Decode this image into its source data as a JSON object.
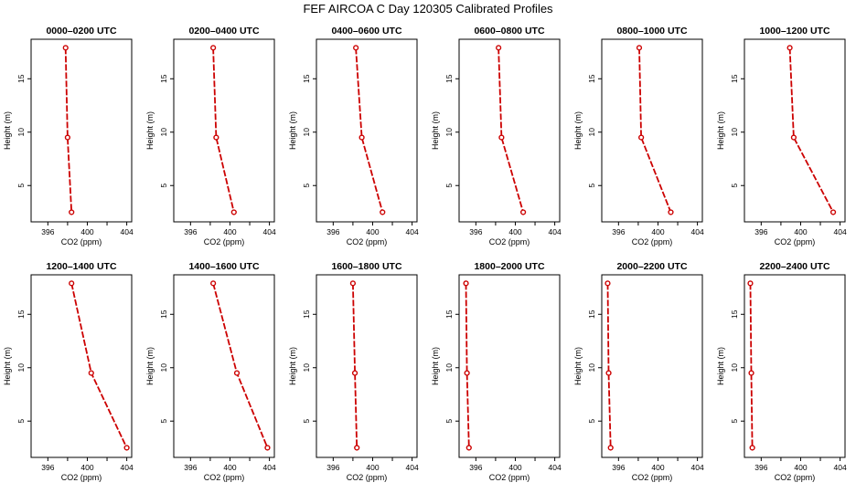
{
  "colors": {
    "line": "#cc0000",
    "frame": "#000000",
    "background": "#ffffff"
  },
  "chart_data": {
    "type": "line",
    "title": "FEF AIRCOA C  Day 120305  Calibrated Profiles",
    "xlabel": "CO2 (ppm)",
    "ylabel": "Height (m)",
    "xlim": [
      394.3,
      404.5
    ],
    "ylim": [
      1.6,
      18.7
    ],
    "xticks": [
      396,
      398,
      400,
      402,
      404
    ],
    "xtick_labels": [
      "396",
      "400",
      "404"
    ],
    "yticks": [
      5,
      10,
      15
    ],
    "yticks_labels": [
      "5",
      "10",
      "15"
    ],
    "grid": false,
    "legend": "none",
    "heights": [
      17.9,
      9.5,
      2.5
    ],
    "panels": [
      {
        "title": "0000–0200 UTC",
        "values": [
          397.8,
          398.0,
          398.4
        ]
      },
      {
        "title": "0200–0400 UTC",
        "values": [
          398.3,
          398.6,
          400.4
        ]
      },
      {
        "title": "0400–0600 UTC",
        "values": [
          398.3,
          398.9,
          401.0
        ]
      },
      {
        "title": "0600–0800 UTC",
        "values": [
          398.3,
          398.6,
          400.8
        ]
      },
      {
        "title": "0800–1000 UTC",
        "values": [
          398.1,
          398.3,
          401.3
        ]
      },
      {
        "title": "1000–1200 UTC",
        "values": [
          398.9,
          399.3,
          403.3
        ]
      },
      {
        "title": "1200–1400 UTC",
        "values": [
          398.4,
          400.4,
          404.0
        ]
      },
      {
        "title": "1400–1600 UTC",
        "values": [
          398.3,
          400.7,
          403.8
        ]
      },
      {
        "title": "1600–1800 UTC",
        "values": [
          398.0,
          398.2,
          398.4
        ]
      },
      {
        "title": "1800–2000 UTC",
        "values": [
          395.0,
          395.1,
          395.3
        ]
      },
      {
        "title": "2000–2200 UTC",
        "values": [
          394.9,
          395.0,
          395.2
        ]
      },
      {
        "title": "2200–2400 UTC",
        "values": [
          394.9,
          395.0,
          395.1
        ]
      }
    ]
  }
}
